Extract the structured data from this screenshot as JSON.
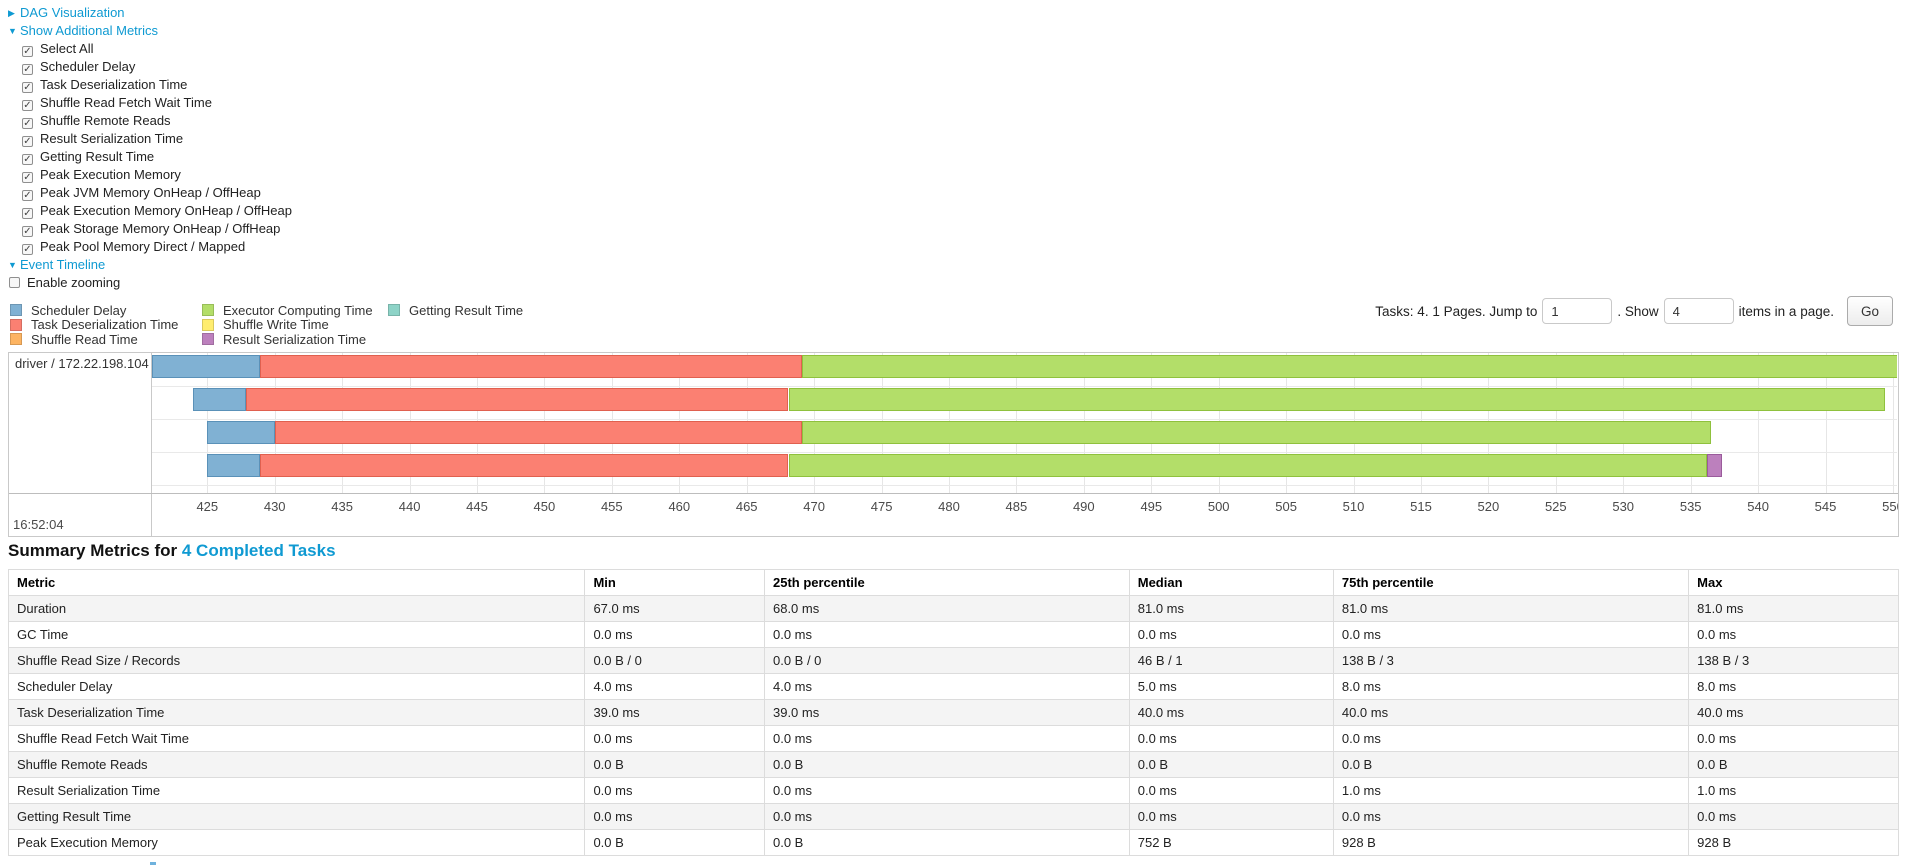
{
  "colors": {
    "link": "#0f9ad2"
  },
  "controls": {
    "dag_toggle": {
      "label": "DAG Visualization",
      "state": "collapsed"
    },
    "metrics_toggle": {
      "label": "Show Additional Metrics",
      "state": "expanded"
    },
    "metric_checkboxes": [
      {
        "label": "Select All",
        "checked": true
      },
      {
        "label": "Scheduler Delay",
        "checked": true
      },
      {
        "label": "Task Deserialization Time",
        "checked": true
      },
      {
        "label": "Shuffle Read Fetch Wait Time",
        "checked": true
      },
      {
        "label": "Shuffle Remote Reads",
        "checked": true
      },
      {
        "label": "Result Serialization Time",
        "checked": true
      },
      {
        "label": "Getting Result Time",
        "checked": true
      },
      {
        "label": "Peak Execution Memory",
        "checked": true
      },
      {
        "label": "Peak JVM Memory OnHeap / OffHeap",
        "checked": true
      },
      {
        "label": "Peak Execution Memory OnHeap / OffHeap",
        "checked": true
      },
      {
        "label": "Peak Storage Memory OnHeap / OffHeap",
        "checked": true
      },
      {
        "label": "Peak Pool Memory Direct / Mapped",
        "checked": true
      }
    ],
    "timeline_toggle": {
      "label": "Event Timeline",
      "state": "expanded"
    },
    "enable_zooming": {
      "label": "Enable zooming",
      "checked": false
    }
  },
  "legend": {
    "columns": [
      [
        {
          "label": "Scheduler Delay",
          "key": "scheduler_delay"
        },
        {
          "label": "Task Deserialization Time",
          "key": "task_deserialization"
        },
        {
          "label": "Shuffle Read Time",
          "key": "shuffle_read"
        }
      ],
      [
        {
          "label": "Executor Computing Time",
          "key": "executor_computing"
        },
        {
          "label": "Shuffle Write Time",
          "key": "shuffle_write"
        },
        {
          "label": "Result Serialization Time",
          "key": "result_serialization"
        }
      ],
      [
        {
          "label": "Getting Result Time",
          "key": "getting_result"
        }
      ]
    ]
  },
  "series_colors": {
    "scheduler_delay": {
      "fill": "#80B1D3",
      "border": "#5a91b8"
    },
    "task_deserialization": {
      "fill": "#FB8072",
      "border": "#e0604f"
    },
    "shuffle_read": {
      "fill": "#FDB462",
      "border": "#e09338"
    },
    "executor_computing": {
      "fill": "#B3DE69",
      "border": "#8fc13d"
    },
    "shuffle_write": {
      "fill": "#FFED6F",
      "border": "#e3cd3e"
    },
    "result_serialization": {
      "fill": "#BC80BD",
      "border": "#9a5b9b"
    },
    "getting_result": {
      "fill": "#8DD3C7",
      "border": "#5fb8a8"
    }
  },
  "pagination": {
    "tasks_text": "Tasks: 4. 1 Pages. Jump to",
    "jump_value": "1",
    "between_text": ". Show",
    "show_value": "4",
    "suffix_text": "items in a page.",
    "go_label": "Go"
  },
  "chart_data": {
    "type": "timeline",
    "group_label": "driver / 172.22.198.104",
    "axis": {
      "units": "ms",
      "window_start": 420.9,
      "window_end": 550.3,
      "tick_start": 425,
      "tick_end": 550,
      "tick_step": 5,
      "major_label": "16:52:04"
    },
    "tasks": [
      {
        "segments": [
          {
            "key": "scheduler_delay",
            "start": 420.9,
            "end": 428.9
          },
          {
            "key": "task_deserialization",
            "start": 428.9,
            "end": 469.1
          },
          {
            "key": "executor_computing",
            "start": 469.1,
            "end": 550.5
          }
        ]
      },
      {
        "segments": [
          {
            "key": "scheduler_delay",
            "start": 423.9,
            "end": 427.9
          },
          {
            "key": "task_deserialization",
            "start": 427.9,
            "end": 468.1
          },
          {
            "key": "executor_computing",
            "start": 468.1,
            "end": 549.4
          }
        ]
      },
      {
        "segments": [
          {
            "key": "scheduler_delay",
            "start": 425.0,
            "end": 430.0
          },
          {
            "key": "task_deserialization",
            "start": 430.0,
            "end": 469.1
          },
          {
            "key": "executor_computing",
            "start": 469.1,
            "end": 536.5
          }
        ]
      },
      {
        "segments": [
          {
            "key": "scheduler_delay",
            "start": 425.0,
            "end": 428.9
          },
          {
            "key": "task_deserialization",
            "start": 428.9,
            "end": 468.1
          },
          {
            "key": "executor_computing",
            "start": 468.1,
            "end": 536.2
          },
          {
            "key": "result_serialization",
            "start": 536.2,
            "end": 537.3
          }
        ]
      }
    ]
  },
  "summary": {
    "title_prefix": "Summary Metrics for",
    "title_link": "4 Completed Tasks",
    "table": {
      "headers": [
        "Metric",
        "Min",
        "25th percentile",
        "Median",
        "75th percentile",
        "Max"
      ],
      "col_widths": [
        "30.5%",
        "9.5%",
        "19.3%",
        "10.8%",
        "18.8%",
        "11.1%"
      ],
      "rows": [
        {
          "metric": "Duration",
          "values": [
            "67.0 ms",
            "68.0 ms",
            "81.0 ms",
            "81.0 ms",
            "81.0 ms"
          ]
        },
        {
          "metric": "GC Time",
          "values": [
            "0.0 ms",
            "0.0 ms",
            "0.0 ms",
            "0.0 ms",
            "0.0 ms"
          ]
        },
        {
          "metric": "Shuffle Read Size / Records",
          "values": [
            "0.0 B / 0",
            "0.0 B / 0",
            "46 B / 1",
            "138 B / 3",
            "138 B / 3"
          ]
        },
        {
          "metric": "Scheduler Delay",
          "values": [
            "4.0 ms",
            "4.0 ms",
            "5.0 ms",
            "8.0 ms",
            "8.0 ms"
          ]
        },
        {
          "metric": "Task Deserialization Time",
          "values": [
            "39.0 ms",
            "39.0 ms",
            "40.0 ms",
            "40.0 ms",
            "40.0 ms"
          ]
        },
        {
          "metric": "Shuffle Read Fetch Wait Time",
          "values": [
            "0.0 ms",
            "0.0 ms",
            "0.0 ms",
            "0.0 ms",
            "0.0 ms"
          ]
        },
        {
          "metric": "Shuffle Remote Reads",
          "values": [
            "0.0 B",
            "0.0 B",
            "0.0 B",
            "0.0 B",
            "0.0 B"
          ]
        },
        {
          "metric": "Result Serialization Time",
          "values": [
            "0.0 ms",
            "0.0 ms",
            "0.0 ms",
            "1.0 ms",
            "1.0 ms"
          ]
        },
        {
          "metric": "Getting Result Time",
          "values": [
            "0.0 ms",
            "0.0 ms",
            "0.0 ms",
            "0.0 ms",
            "0.0 ms"
          ]
        },
        {
          "metric": "Peak Execution Memory",
          "values": [
            "0.0 B",
            "0.0 B",
            "752 B",
            "928 B",
            "928 B"
          ]
        }
      ]
    }
  }
}
